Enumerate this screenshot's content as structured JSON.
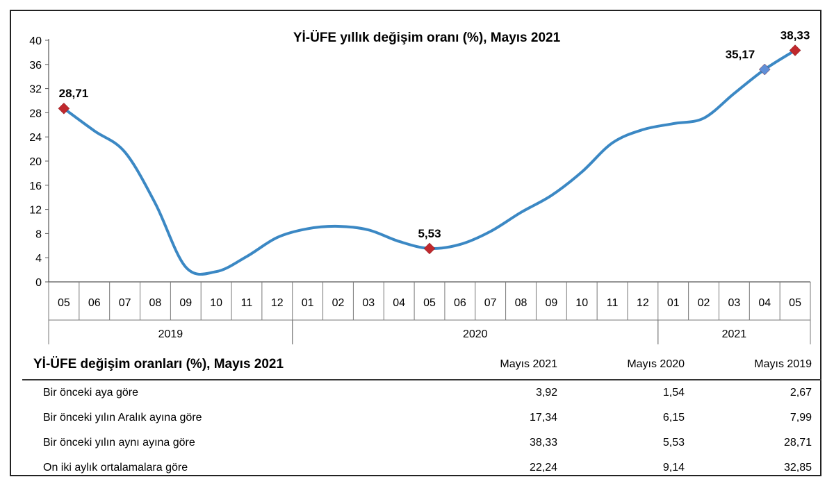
{
  "chart_data": {
    "type": "line",
    "title": "Yİ-ÜFE yıllık değişim oranı (%), Mayıs 2021",
    "xlabel": "",
    "ylabel": "",
    "ylim": [
      0,
      40
    ],
    "yticks": [
      "0",
      "4",
      "8",
      "12",
      "16",
      "20",
      "24",
      "28",
      "32",
      "36",
      "40"
    ],
    "categories": [
      "05",
      "06",
      "07",
      "08",
      "09",
      "10",
      "11",
      "12",
      "01",
      "02",
      "03",
      "04",
      "05",
      "06",
      "07",
      "08",
      "09",
      "10",
      "11",
      "12",
      "01",
      "02",
      "03",
      "04",
      "05"
    ],
    "years": [
      {
        "label": "2019",
        "start": 0,
        "end": 7
      },
      {
        "label": "2020",
        "start": 8,
        "end": 19
      },
      {
        "label": "2021",
        "start": 20,
        "end": 24
      }
    ],
    "series": [
      {
        "color": "#3b88c4",
        "values": [
          28.71,
          25.0,
          21.5,
          13.0,
          2.45,
          1.7,
          4.2,
          7.35,
          8.8,
          9.2,
          8.6,
          6.7,
          5.53,
          6.2,
          8.35,
          11.5,
          14.3,
          18.2,
          23.0,
          25.2,
          26.2,
          27.1,
          31.2,
          35.17,
          38.33
        ]
      }
    ],
    "annotations": [
      {
        "index": 0,
        "label": "28,71",
        "marker": "diamond",
        "color": "#c0282d"
      },
      {
        "index": 12,
        "label": "5,53",
        "marker": "diamond",
        "color": "#c0282d"
      },
      {
        "index": 23,
        "label": "35,17",
        "marker": "diamond",
        "color": "#5f8fd8"
      },
      {
        "index": 24,
        "label": "38,33",
        "marker": "diamond",
        "color": "#c0282d"
      }
    ],
    "grid": false
  },
  "table": {
    "title": "Yİ-ÜFE değişim oranları (%), Mayıs 2021",
    "columns": [
      "Mayıs 2021",
      "Mayıs 2020",
      "Mayıs 2019"
    ],
    "rows": [
      {
        "label": "Bir önceki aya göre",
        "values": [
          "3,92",
          "1,54",
          "2,67"
        ]
      },
      {
        "label": "Bir önceki yılın Aralık ayına göre",
        "values": [
          "17,34",
          "6,15",
          "7,99"
        ]
      },
      {
        "label": "Bir önceki yılın aynı ayına göre",
        "values": [
          "38,33",
          "5,53",
          "28,71"
        ]
      },
      {
        "label": "On iki aylık ortalamalara göre",
        "values": [
          "22,24",
          "9,14",
          "32,85"
        ]
      }
    ]
  }
}
